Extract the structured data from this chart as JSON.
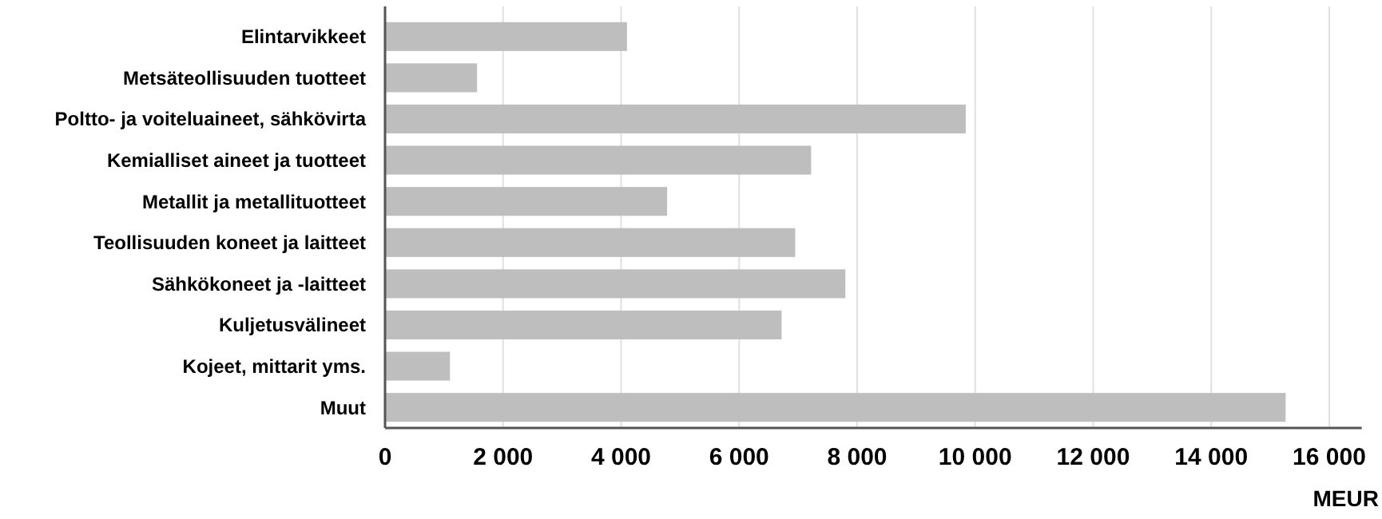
{
  "chart_data": {
    "type": "bar",
    "orientation": "horizontal",
    "xlabel": "MEUR",
    "categories": [
      "Elintarvikkeet",
      "Metsäteollisuuden tuotteet",
      "Poltto- ja voiteluaineet, sähkövirta",
      "Kemialliset aineet ja tuotteet",
      "Metallit ja metallituotteet",
      "Teollisuuden koneet ja laitteet",
      "Sähkökoneet ja -laitteet",
      "Kuljetusvälineet",
      "Kojeet, mittarit yms.",
      "Muut"
    ],
    "values": [
      4100,
      1560,
      9840,
      7220,
      4780,
      6950,
      7800,
      6720,
      1100,
      15260
    ],
    "color": "#bdbebd",
    "xlim": [
      0,
      16550
    ],
    "xticks": [
      0,
      {
        "value": 2000,
        "label": "2 000"
      },
      {
        "value": 4000,
        "label": "4 000"
      },
      {
        "value": 6000,
        "label": "6 000"
      },
      {
        "value": 8000,
        "label": "8 000"
      },
      {
        "value": 10000,
        "label": "10 000"
      },
      {
        "value": 12000,
        "label": "12 000"
      },
      {
        "value": 14000,
        "label": "14 000"
      },
      {
        "value": 16000,
        "label": "16 000"
      }
    ],
    "grid": "x"
  }
}
